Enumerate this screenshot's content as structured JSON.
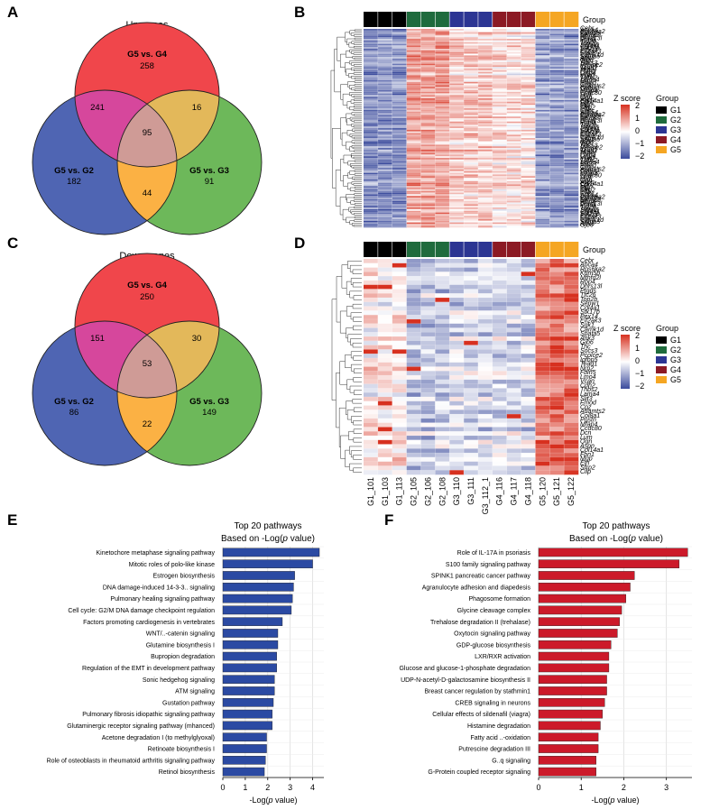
{
  "panel_labels": {
    "a": "A",
    "b": "B",
    "c": "C",
    "d": "D",
    "e": "E",
    "f": "F"
  },
  "colors": {
    "venn_red": "#f0464b",
    "venn_blue": "#4f65b3",
    "venn_green": "#6db85a",
    "venn_ab": "#d6479c",
    "venn_ac": "#e3b85a",
    "venn_bc": "#fbb144",
    "venn_abc": "#cf9b96",
    "g1": "#000000",
    "g2": "#1f6b3d",
    "g3": "#2c3593",
    "g4": "#8c1a24",
    "g5": "#f5a623",
    "bar_e": "#2b4aa3",
    "bar_f": "#cc1a2a",
    "heat_low": "#3a4a9c",
    "heat_mid": "#ffffff",
    "heat_high": "#d7301f"
  },
  "venn_up": {
    "title": "Up genes",
    "set_a": "G5 vs. G4",
    "set_b": "G5 vs. G2",
    "set_c": "G5 vs. G3",
    "only_a": "258",
    "only_b": "182",
    "only_c": "91",
    "ab": "241",
    "ac": "16",
    "bc": "44",
    "abc": "95"
  },
  "venn_down": {
    "title": "Down genes",
    "set_a": "G5 vs. G4",
    "set_b": "G5 vs. G2",
    "set_c": "G5 vs. G3",
    "only_a": "250",
    "only_b": "86",
    "only_c": "149",
    "ab": "151",
    "ac": "30",
    "bc": "22",
    "abc": "53"
  },
  "heatmap": {
    "group_label": "Group",
    "zscore_label": "Z score",
    "legend_title": "Group",
    "groups": [
      "G1",
      "G2",
      "G3",
      "G4",
      "G5"
    ],
    "scale_ticks": [
      "2",
      "1",
      "0",
      "−1",
      "−2"
    ],
    "samples": [
      "G1_101",
      "G1_103",
      "G1_113",
      "G2_105",
      "G2_106",
      "G2_108",
      "G3_110",
      "G3_111",
      "G3_112_1",
      "G4_116",
      "G4_117",
      "G4_118",
      "G5_120",
      "G5_121",
      "G5_122"
    ],
    "sample_groups": [
      0,
      0,
      0,
      1,
      1,
      1,
      2,
      2,
      2,
      3,
      3,
      3,
      4,
      4,
      4
    ],
    "up_rows": 120,
    "down_rows": 50,
    "down_gene_labels": [
      "Cebr",
      "Abca4",
      "Rps6ka2",
      "Kdm5b",
      "Mthfd2l",
      "Rbp4",
      "Dhrs13l",
      "Ptgds",
      "Ttc26",
      "Top2b",
      "Sepw1",
      "Col4a1",
      "Stk17b",
      "Pex14",
      "Eif2ak3",
      "Sgk1",
      "Camk1d",
      "Spata5",
      "Ank3",
      "Gjb6",
      "Tnc",
      "Socs3",
      "Pcolce2",
      "Igfbp5",
      "Tead1",
      "Nrp2",
      "Fbln5",
      "Lmo4",
      "Vcan",
      "Cdh2",
      "Thbs2",
      "Lama4",
      "Slit3",
      "Fmod",
      "Cpz",
      "Adamts2",
      "Col8a1",
      "Postn",
      "Mfap4",
      "Ccdc80",
      "Dcn",
      "Lum",
      "Ogn",
      "Aspn",
      "Col14a1",
      "Fbn1",
      "Mgp",
      "Eln",
      "Sfrp2",
      "Cilp"
    ]
  },
  "chart_data": [
    {
      "type": "bar",
      "panel": "E",
      "title_line1": "Top 20 pathways",
      "title_line2_pre": "Based on -Log(",
      "title_line2_it": "p",
      "title_line2_post": " value)",
      "xlabel_pre": "-Log(",
      "xlabel_it": "p",
      "xlabel_post": " value)",
      "xlim": [
        0,
        4.5
      ],
      "xticks": [
        0,
        1,
        2,
        3,
        4
      ],
      "categories": [
        "Kinetochore metaphase signaling pathway",
        "Mitotic roles of polo-like kinase",
        "Estrogen biosynthesis",
        "DNA damage-induced 14-3-3.. signaling",
        "Pulmonary healing signaling pathway",
        "Cell cycle: G2/M DNA damage checkpoint regulation",
        "Factors promoting cardiogenesis in vertebrates",
        "WNT/..-catenin signaling",
        "Glutamine biosynthesis I",
        "Bupropion degradation",
        "Regulation of the EMT in development pathway",
        "Sonic hedgehog signaling",
        "ATM signaling",
        "Gustation pathway",
        "Pulmonary fibrosis idiopathic signaling pathway",
        "Glutaminergic receptor signaling pathway (mhanced)",
        "Acetone degradation I (to methylglyoxal)",
        "Retinoate biosynthesis I",
        "Role of osteoblasts in rheumatoid arthritis signaling pathway",
        "Retinol biosynthesis"
      ],
      "values": [
        4.3,
        4.0,
        3.2,
        3.15,
        3.1,
        3.05,
        2.65,
        2.45,
        2.45,
        2.4,
        2.4,
        2.3,
        2.3,
        2.25,
        2.2,
        2.2,
        1.95,
        1.95,
        1.9,
        1.85
      ]
    },
    {
      "type": "bar",
      "panel": "F",
      "title_line1": "Top 20 pathways",
      "title_line2_pre": "Based on -Log(",
      "title_line2_it": "p",
      "title_line2_post": " value)",
      "xlabel_pre": "-Log(",
      "xlabel_it": "p",
      "xlabel_post": " value)",
      "xlim": [
        0,
        3.6
      ],
      "xticks": [
        0,
        1,
        2,
        3
      ],
      "categories": [
        "Role of IL-17A in psoriasis",
        "S100 family signaling pathway",
        "SPINK1 pancreatic cancer pathway",
        "Agranulocyte adhesion and diapedesis",
        "Phagosome formation",
        "Glycine cleavage complex",
        "Trehalose degradation II (trehalase)",
        "Oxytocin signaling pathway",
        "GDP-glucose biosynthesis",
        "LXR/RXR activation",
        "Glucose and glucose-1-phosphate degradation",
        "UDP-N-acetyl-D-galactosamine biosynthesis II",
        "Breast cancer regulation by stathmin1",
        "CREB signaling in neurons",
        "Cellular effects of sildenafil (viagra)",
        "Histamine degradation",
        "Fatty acid ..-oxidation",
        "Putrescine degradation III",
        "G..q signaling",
        "G-Protein coupled receptor signaling"
      ],
      "values": [
        3.5,
        3.3,
        2.25,
        2.15,
        2.05,
        1.95,
        1.9,
        1.85,
        1.7,
        1.65,
        1.65,
        1.6,
        1.6,
        1.55,
        1.5,
        1.45,
        1.4,
        1.4,
        1.35,
        1.35
      ]
    }
  ]
}
